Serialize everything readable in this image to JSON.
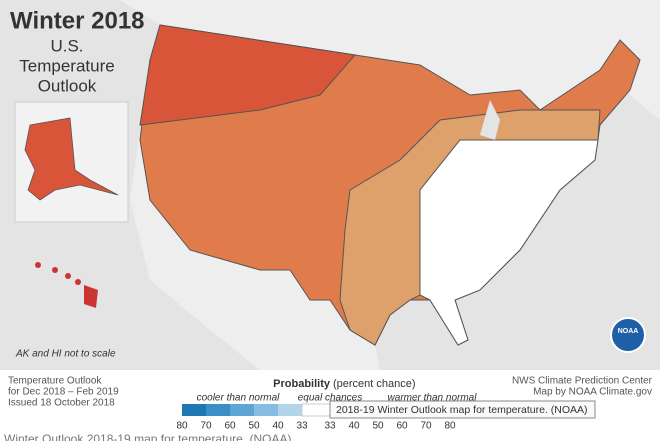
{
  "map": {
    "title": "Winter 2018",
    "subtitle": [
      "U.S.",
      "Temperature",
      "Outlook"
    ],
    "scale_note": "AK and HI not to scale",
    "logo": "NOAA"
  },
  "info": [
    "Temperature Outlook",
    "for Dec 2018 – Feb 2019",
    "Issued 18 October 2018"
  ],
  "legend": {
    "title": "Probability",
    "title_unit": "(percent chance)",
    "cooler": "cooler than normal",
    "equal": "equal chances",
    "warmer": "warmer than normal",
    "cool_ticks": [
      80,
      70,
      60,
      50,
      40,
      33
    ],
    "warm_ticks": [
      33,
      40,
      50,
      60,
      70,
      80
    ]
  },
  "credits": [
    "NWS Climate Prediction Center",
    "Map by NOAA Climate.gov"
  ],
  "tooltip": "2018-19 Winter Outlook map for temperature. (NOAA)",
  "caption": "Winter Outlook 2018-19 map for temperature. (NOAA)"
}
